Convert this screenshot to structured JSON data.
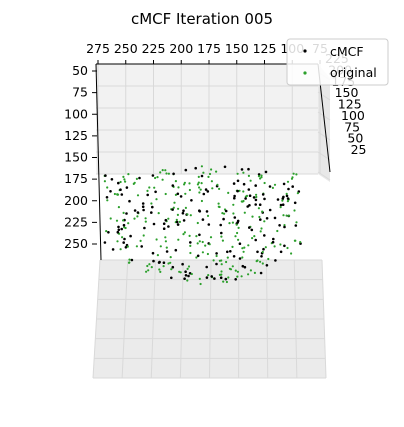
{
  "chart_data": {
    "type": "scatter",
    "title": "cMCF Iteration 005",
    "x_ticks": [
      "275",
      "250",
      "225",
      "200",
      "175",
      "150",
      "125",
      "100",
      "75"
    ],
    "y_ticks": [
      "50",
      "75",
      "100",
      "125",
      "150",
      "175",
      "200",
      "225",
      "250"
    ],
    "z_ticks": [
      "225",
      "200",
      "175",
      "150",
      "125",
      "100",
      "75",
      "50",
      "25"
    ],
    "grid": true,
    "legend_placement": "top-right",
    "series": [
      {
        "name": "cMCF",
        "color": "#000000",
        "marker": "point"
      },
      {
        "name": "original",
        "color": "#2ca02c",
        "marker": "point"
      }
    ]
  }
}
